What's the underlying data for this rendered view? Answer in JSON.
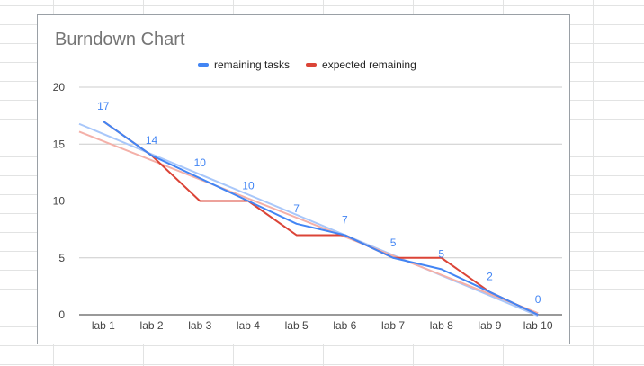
{
  "chart_data": {
    "type": "line",
    "title": "Burndown Chart",
    "categories": [
      "lab 1",
      "lab 2",
      "lab 3",
      "lab 4",
      "lab 5",
      "lab 6",
      "lab 7",
      "lab 8",
      "lab 9",
      "lab 10"
    ],
    "series": [
      {
        "name": "remaining tasks",
        "color": "#4285f4",
        "values": [
          17,
          14,
          12,
          10,
          8,
          7,
          5,
          4,
          2,
          0
        ]
      },
      {
        "name": "expected remaining",
        "color": "#db4437",
        "values": [
          17,
          14,
          10,
          10,
          7,
          7,
          5,
          5,
          2,
          0
        ]
      }
    ],
    "data_labels": [
      17,
      14,
      10,
      10,
      7,
      7,
      5,
      5,
      2,
      0
    ],
    "data_label_color": "#4285f4",
    "trendlines": [
      {
        "of": "remaining tasks",
        "color": "#a8c7fa"
      },
      {
        "of": "expected remaining",
        "color": "#f4b0a8"
      }
    ],
    "y_ticks": [
      0,
      5,
      10,
      15,
      20
    ],
    "ylim": [
      0,
      20
    ],
    "grid": true,
    "legend_position": "top"
  }
}
